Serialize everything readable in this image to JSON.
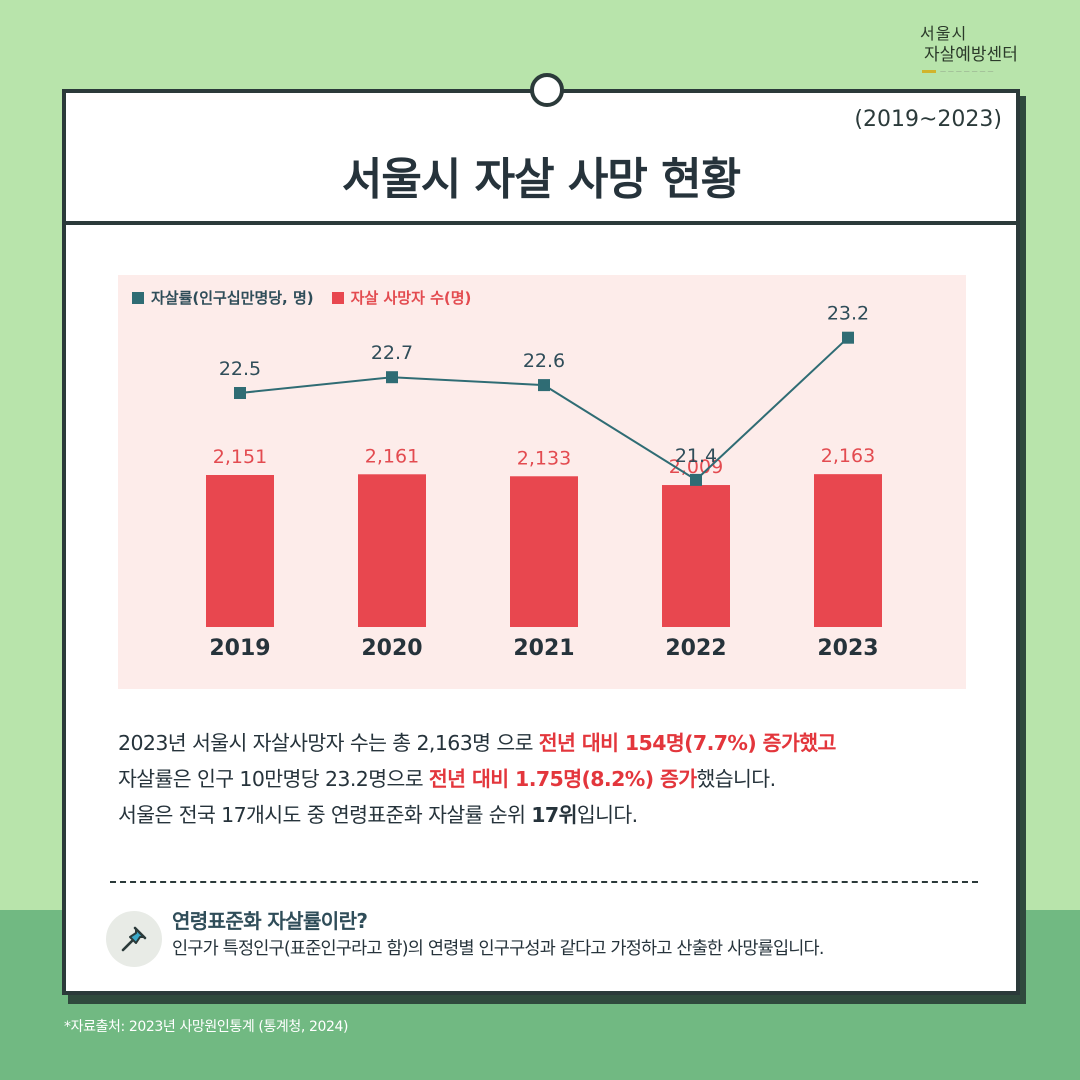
{
  "logo": {
    "line1": "서울시",
    "line2": "자살예방센터"
  },
  "header": {
    "range": "(2019~2023)",
    "title": "서울시 자살 사망 현황"
  },
  "colors": {
    "bar": "#e8474f",
    "line": "#2f6c74",
    "panel": "#fdecea",
    "highlight": "#e3363c"
  },
  "chart_data": {
    "type": "bar",
    "categories": [
      "2019",
      "2020",
      "2021",
      "2022",
      "2023"
    ],
    "series": [
      {
        "name": "자살률(인구십만명당, 명)",
        "type": "line",
        "values": [
          22.5,
          22.7,
          22.6,
          21.4,
          23.2
        ],
        "labels": [
          "22.5",
          "22.7",
          "22.6",
          "21.4",
          "23.2"
        ],
        "color": "#2f6c74"
      },
      {
        "name": "자살 사망자 수(명)",
        "type": "bar",
        "values": [
          2151,
          2161,
          2133,
          2009,
          2163
        ],
        "labels": [
          "2,151",
          "2,161",
          "2,133",
          "2,009",
          "2,163"
        ],
        "color": "#e8474f"
      }
    ],
    "legend": "top-left",
    "grid": false
  },
  "description": {
    "l1a": "2023년 서울시 자살사망자 수는 총 2,163명 으로 ",
    "l1b": "전년 대비 154명(7.7%) 증가했고",
    "l2a": "자살률은 인구 10만명당 23.2명으로 ",
    "l2b": "전년 대비 1.75명(8.2%) 증가",
    "l2c": "했습니다.",
    "l3a": "서울은 전국 17개시도 중 연령표준화 자살률 순위 ",
    "l3b": "17위",
    "l3c": "입니다."
  },
  "info": {
    "icon": "pin-icon",
    "title": "연령표준화 자살률이란?",
    "body": "인구가 특정인구(표준인구라고 함)의 연령별 인구구성과 같다고 가정하고 산출한 사망률입니다."
  },
  "source": "*자료출처: 2023년 사망원인통계 (통계청, 2024)"
}
